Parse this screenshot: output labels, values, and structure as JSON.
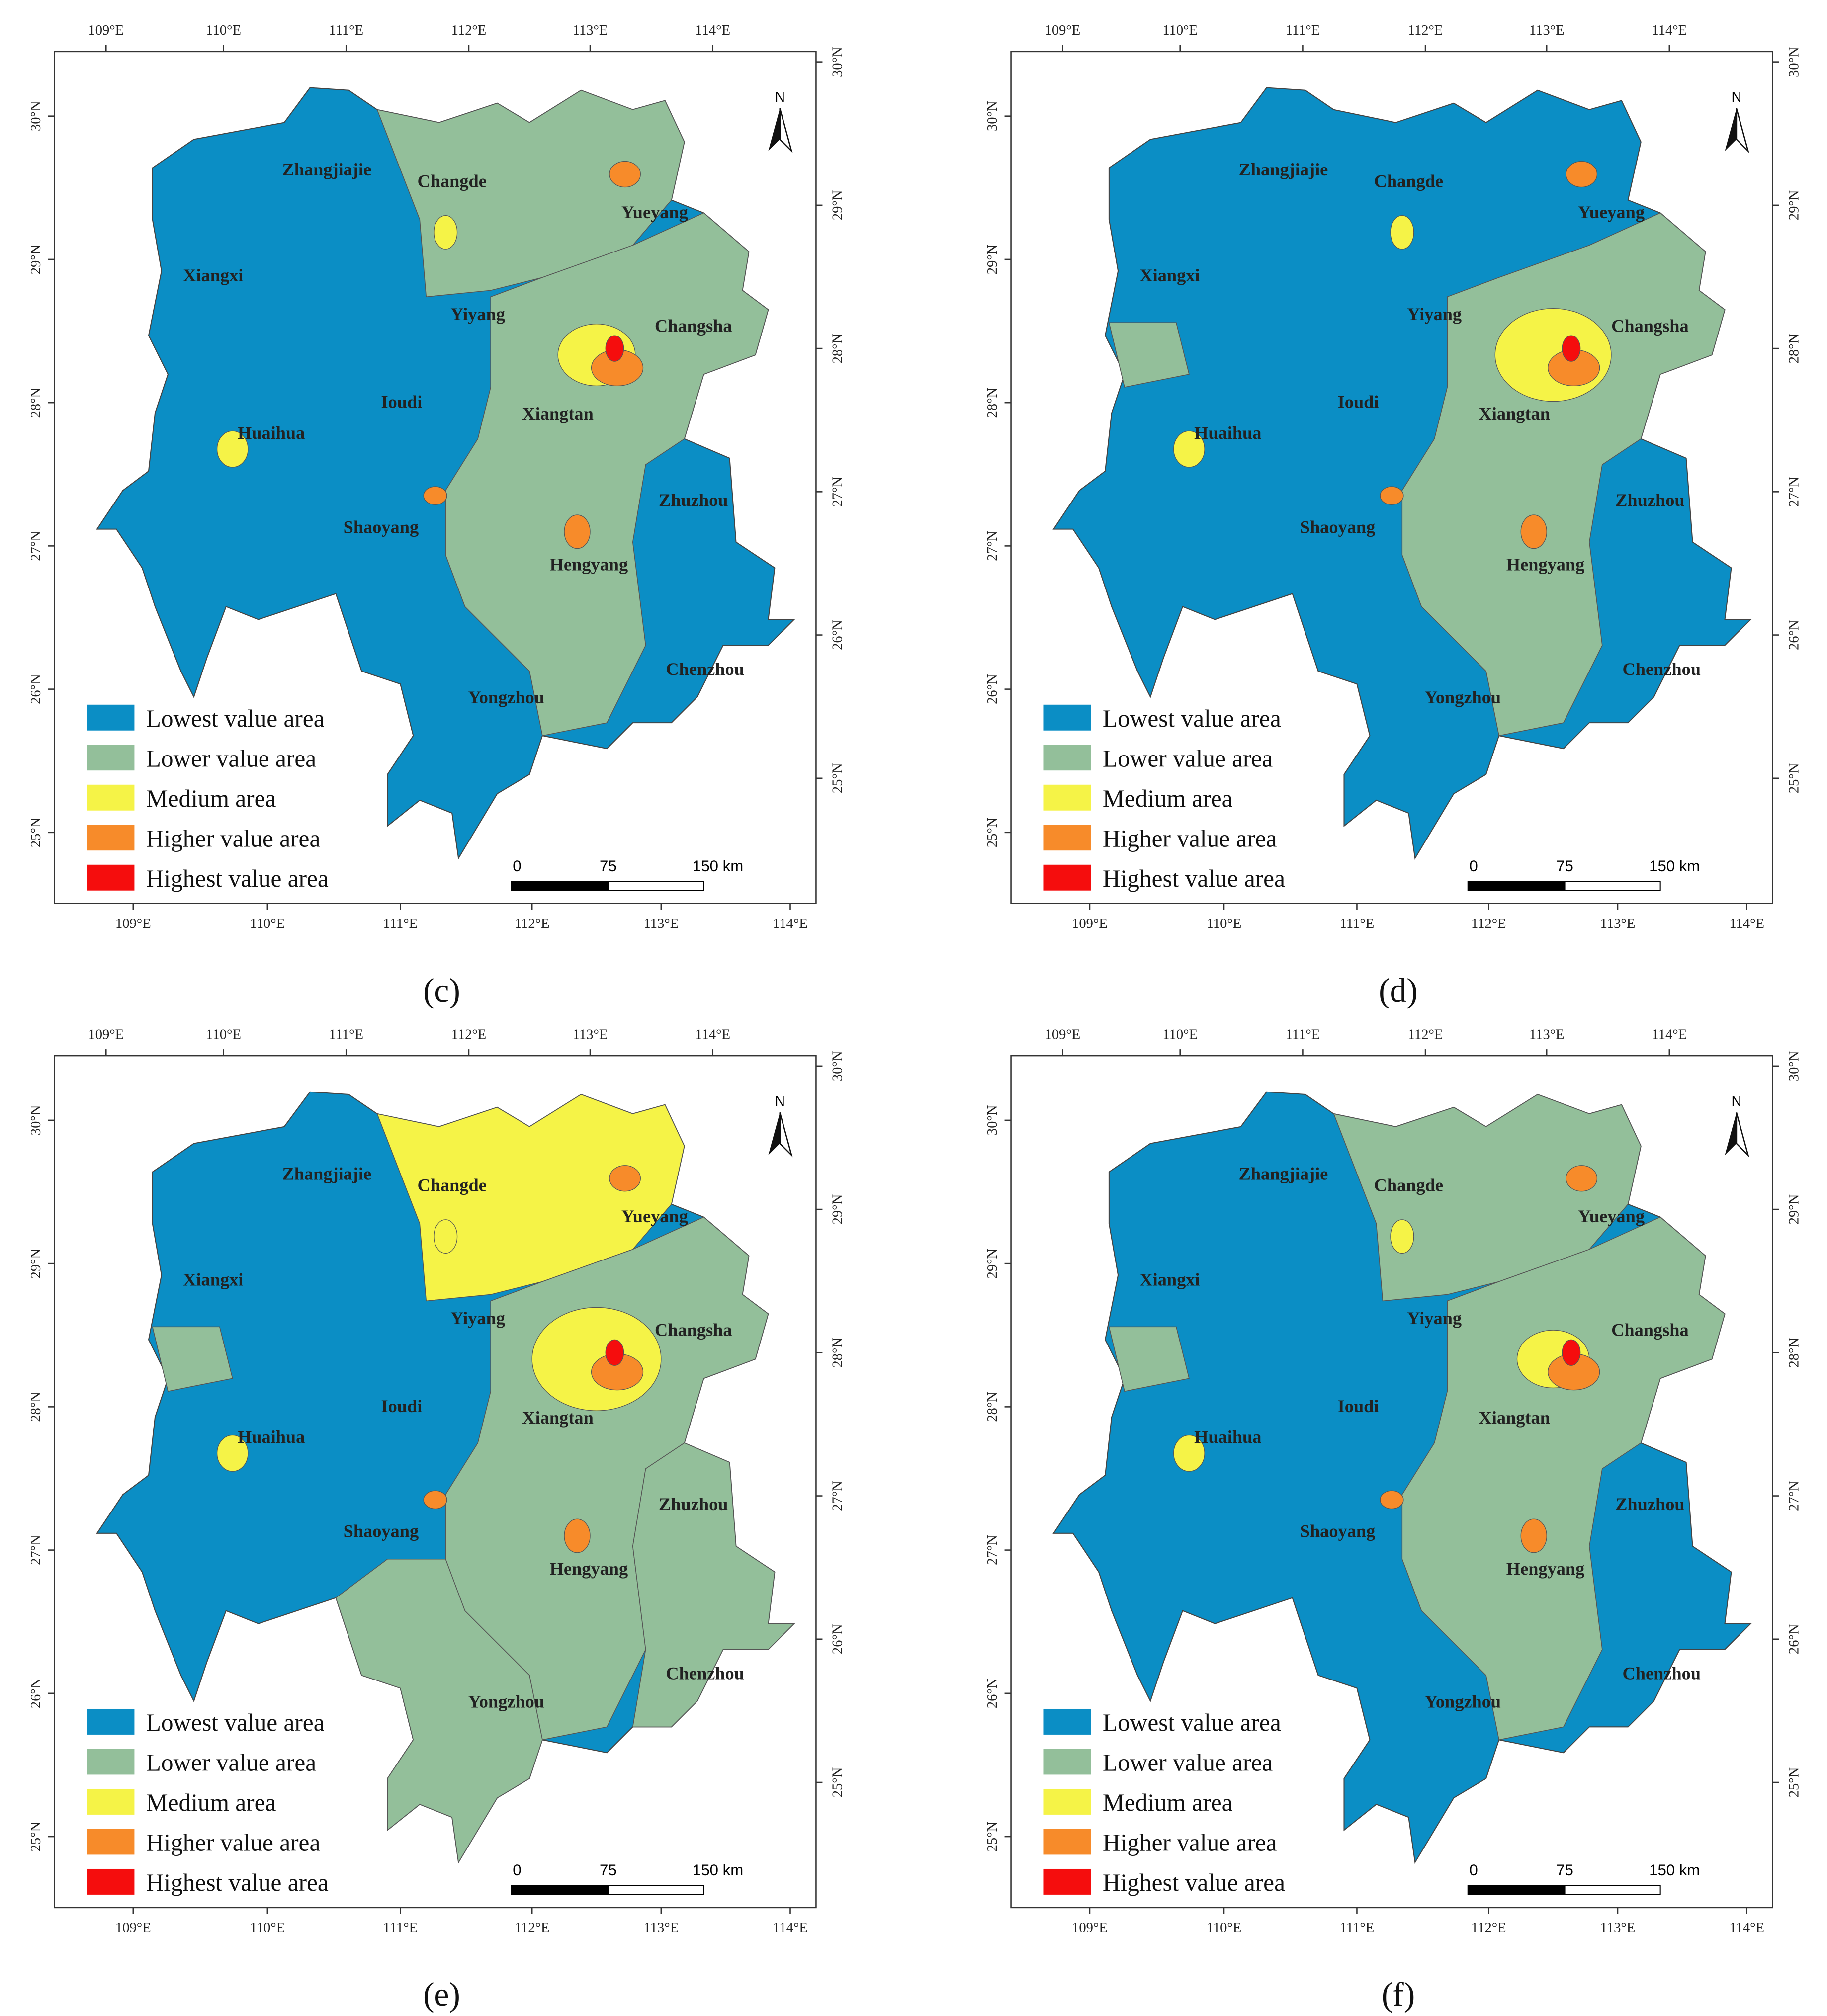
{
  "panels": [
    {
      "label": "(c)"
    },
    {
      "label": "(d)"
    },
    {
      "label": "(e)"
    },
    {
      "label": "(f)"
    }
  ],
  "map": {
    "lon_labels": [
      "109°E",
      "110°E",
      "111°E",
      "112°E",
      "113°E",
      "114°E"
    ],
    "lat_labels": [
      "30°N",
      "29°N",
      "28°N",
      "27°N",
      "26°N",
      "25°N"
    ],
    "north": "N",
    "cities": [
      "Zhangjiajie",
      "Changde",
      "Yueyang",
      "Xiangxi",
      "Yiyang",
      "Changsha",
      "Ioudi",
      "Xiangtan",
      "Huaihua",
      "Zhuzhou",
      "Shaoyang",
      "Hengyang",
      "Chenzhou",
      "Yongzhou"
    ],
    "legend": [
      {
        "label": "Lowest value area",
        "color": "#0b8ec5"
      },
      {
        "label": "Lower value area",
        "color": "#93bf9a"
      },
      {
        "label": "Medium area",
        "color": "#f5f347"
      },
      {
        "label": "Higher value area",
        "color": "#f78b2a"
      },
      {
        "label": "Highest value area",
        "color": "#f50d0d"
      }
    ],
    "scale_labels": [
      "0",
      "75",
      "150 km"
    ]
  }
}
